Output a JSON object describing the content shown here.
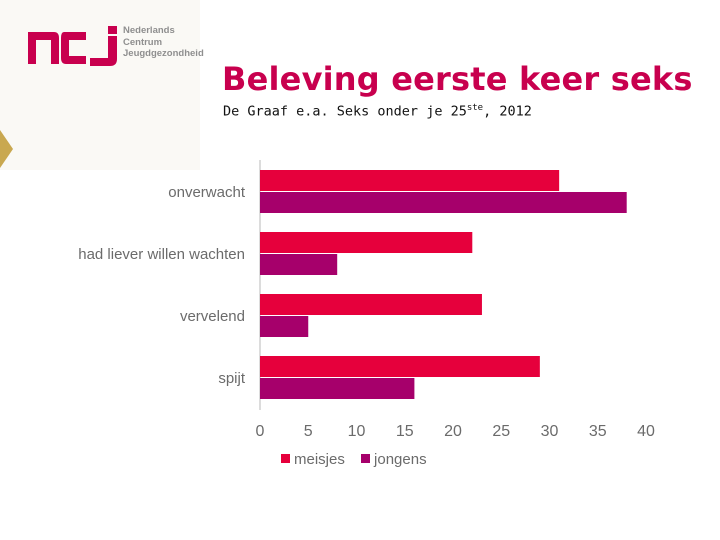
{
  "logo": {
    "mark": "ncj",
    "lines": [
      "Nederlands",
      "Centrum",
      "Jeugdgezondheid"
    ]
  },
  "slide": {
    "title": "Beleving eerste keer seks",
    "subtitle_main": "De Graaf e.a. Seks onder je 25",
    "subtitle_sup": "ste",
    "subtitle_end": ", 2012"
  },
  "colors": {
    "brand": "#c8004e",
    "meisjes": "#e6003c",
    "jongens": "#a6006b",
    "arrow": "#c9a850"
  },
  "chart_data": {
    "type": "bar",
    "orientation": "horizontal",
    "categories": [
      "onverwacht",
      "had liever willen wachten",
      "vervelend",
      "spijt"
    ],
    "series": [
      {
        "name": "meisjes",
        "values": [
          31,
          22,
          23,
          29
        ]
      },
      {
        "name": "jongens",
        "values": [
          38,
          8,
          5,
          16
        ]
      }
    ],
    "xlim": [
      0,
      40
    ],
    "xticks": [
      0,
      5,
      10,
      15,
      20,
      25,
      30,
      35,
      40
    ],
    "grid": false,
    "legend_position": "bottom"
  }
}
